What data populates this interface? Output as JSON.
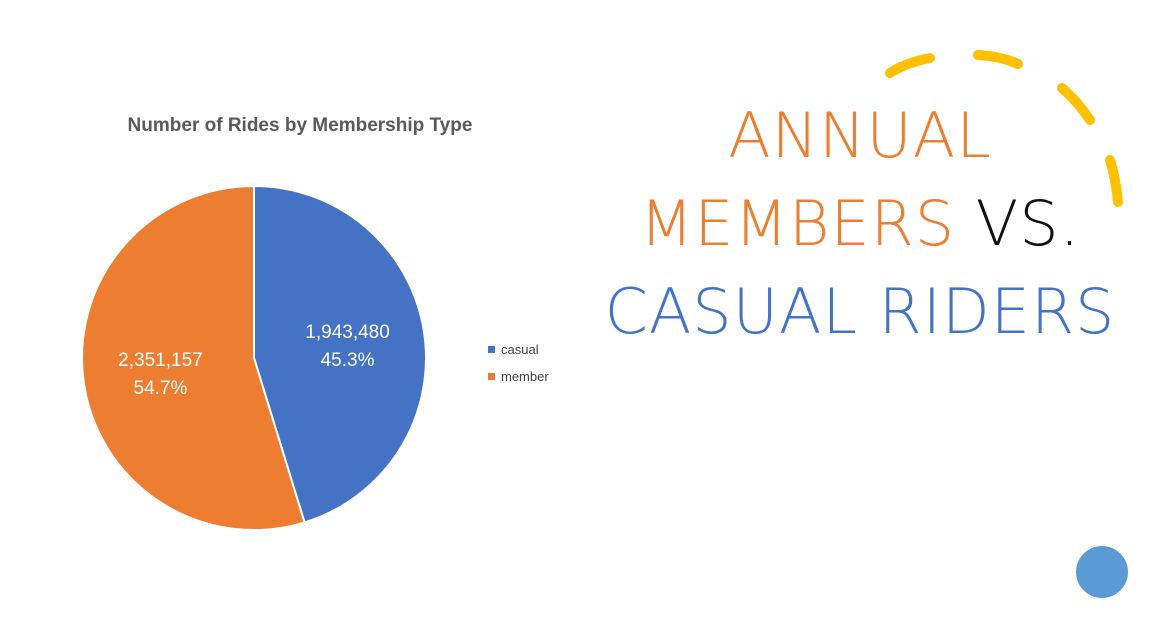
{
  "chart_data": {
    "type": "pie",
    "title": "Number of Rides by Membership Type",
    "categories": [
      "casual",
      "member"
    ],
    "values": [
      1943480,
      2351157
    ],
    "value_labels": [
      "1,943,480",
      "2,351,157"
    ],
    "percent_labels": [
      "45.3%",
      "54.7%"
    ],
    "colors": [
      "#4472c4",
      "#ed7d31"
    ],
    "legend_position": "right"
  },
  "heading": {
    "line1": "ANNUAL",
    "line2a": "MEMBERS",
    "line2b": " VS.",
    "line3": "CASUAL RIDERS",
    "colors": {
      "orange": "#ed7d31",
      "black": "#111111",
      "blue": "#4472c4"
    }
  },
  "decorations": {
    "arc_color": "#ffc000",
    "circle_color": "#5b9bd5"
  }
}
